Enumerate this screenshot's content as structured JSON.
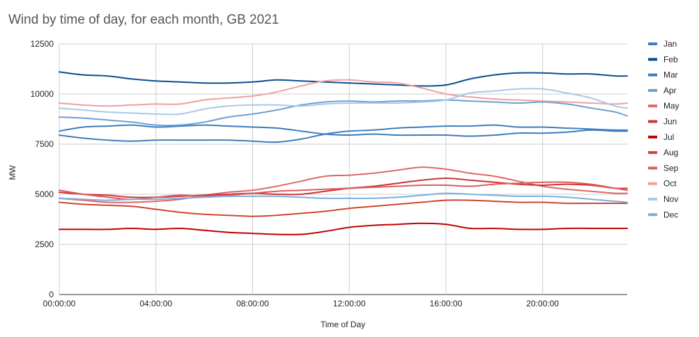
{
  "chart_data": {
    "type": "line",
    "title": "Wind by time of day, for each month, GB 2021",
    "xlabel": "Time of Day",
    "ylabel": "MW",
    "xlim_hours": [
      0,
      23.5
    ],
    "ylim": [
      0,
      12500
    ],
    "yticks": [
      0,
      2500,
      5000,
      7500,
      10000,
      12500
    ],
    "xticks": [
      {
        "hour": 0,
        "label": "00:00:00"
      },
      {
        "hour": 4,
        "label": "04:00:00"
      },
      {
        "hour": 8,
        "label": "08:00:00"
      },
      {
        "hour": 12,
        "label": "12:00:00"
      },
      {
        "hour": 16,
        "label": "16:00:00"
      },
      {
        "hour": 20,
        "label": "20:00:00"
      }
    ],
    "grid": true,
    "legend_position": "right",
    "x_hours": [
      0,
      1,
      2,
      3,
      4,
      5,
      6,
      7,
      8,
      9,
      10,
      11,
      12,
      13,
      14,
      15,
      16,
      17,
      18,
      19,
      20,
      21,
      22,
      23,
      23.5
    ],
    "series": [
      {
        "name": "Jan",
        "color": "#3d7dbf",
        "values": [
          7950,
          7800,
          7700,
          7650,
          7700,
          7700,
          7700,
          7700,
          7650,
          7600,
          7750,
          8000,
          8150,
          8200,
          8300,
          8350,
          8400,
          8400,
          8450,
          8350,
          8350,
          8300,
          8250,
          8200,
          8200
        ]
      },
      {
        "name": "Feb",
        "color": "#0b4d8f",
        "values": [
          11100,
          10950,
          10900,
          10750,
          10650,
          10600,
          10550,
          10550,
          10600,
          10700,
          10650,
          10600,
          10550,
          10500,
          10450,
          10400,
          10450,
          10750,
          10950,
          11050,
          11050,
          11000,
          11000,
          10900,
          10900
        ]
      },
      {
        "name": "Mar",
        "color": "#3b7bbd",
        "values": [
          8150,
          8350,
          8400,
          8450,
          8350,
          8400,
          8450,
          8400,
          8350,
          8300,
          8150,
          8000,
          7950,
          8000,
          7950,
          7950,
          7950,
          7900,
          7950,
          8050,
          8050,
          8100,
          8200,
          8150,
          8150
        ]
      },
      {
        "name": "Apr",
        "color": "#6a9fd4",
        "values": [
          8850,
          8800,
          8700,
          8600,
          8450,
          8450,
          8600,
          8850,
          9000,
          9200,
          9450,
          9600,
          9650,
          9600,
          9650,
          9650,
          9700,
          9650,
          9600,
          9550,
          9600,
          9500,
          9300,
          9100,
          8900
        ]
      },
      {
        "name": "May",
        "color": "#e06666",
        "values": [
          4800,
          4700,
          4600,
          4600,
          4650,
          4750,
          4950,
          5100,
          5200,
          5400,
          5650,
          5900,
          5950,
          6050,
          6200,
          6350,
          6250,
          6050,
          5900,
          5650,
          5400,
          5250,
          5150,
          5050,
          5050
        ]
      },
      {
        "name": "Jun",
        "color": "#cc3333",
        "values": [
          5100,
          5000,
          4950,
          4850,
          4850,
          4900,
          4950,
          5000,
          5050,
          5000,
          5000,
          5150,
          5300,
          5400,
          5550,
          5700,
          5800,
          5700,
          5600,
          5500,
          5450,
          5500,
          5450,
          5300,
          5300
        ]
      },
      {
        "name": "Jul",
        "color": "#c00000",
        "values": [
          3250,
          3250,
          3250,
          3300,
          3250,
          3300,
          3200,
          3100,
          3050,
          3000,
          3000,
          3150,
          3350,
          3450,
          3500,
          3550,
          3500,
          3300,
          3300,
          3250,
          3250,
          3300,
          3300,
          3300,
          3300
        ]
      },
      {
        "name": "Aug",
        "color": "#d0452f",
        "values": [
          4600,
          4500,
          4450,
          4400,
          4250,
          4100,
          4000,
          3950,
          3900,
          3950,
          4050,
          4150,
          4300,
          4400,
          4500,
          4600,
          4700,
          4700,
          4650,
          4600,
          4600,
          4550,
          4550,
          4550,
          4550
        ]
      },
      {
        "name": "Sep",
        "color": "#dd5c5c",
        "values": [
          5200,
          5000,
          4850,
          4750,
          4850,
          4950,
          4900,
          4950,
          5050,
          5150,
          5200,
          5250,
          5300,
          5350,
          5400,
          5450,
          5450,
          5400,
          5500,
          5550,
          5600,
          5600,
          5500,
          5300,
          5200
        ]
      },
      {
        "name": "Oct",
        "color": "#eda0a0",
        "values": [
          9550,
          9450,
          9400,
          9450,
          9500,
          9500,
          9700,
          9800,
          9900,
          10100,
          10400,
          10650,
          10700,
          10600,
          10550,
          10300,
          10000,
          9850,
          9750,
          9700,
          9650,
          9600,
          9550,
          9500,
          9550
        ]
      },
      {
        "name": "Nov",
        "color": "#a7c8e8",
        "values": [
          9300,
          9200,
          9100,
          9050,
          9000,
          9000,
          9250,
          9400,
          9450,
          9450,
          9400,
          9500,
          9550,
          9550,
          9550,
          9600,
          9700,
          10050,
          10150,
          10250,
          10250,
          10050,
          9800,
          9400,
          9300
        ]
      },
      {
        "name": "Dec",
        "color": "#7aaedf",
        "values": [
          4800,
          4750,
          4700,
          4750,
          4750,
          4800,
          4850,
          4900,
          4900,
          4900,
          4850,
          4800,
          4800,
          4800,
          4850,
          4950,
          5050,
          5000,
          4950,
          4900,
          4900,
          4850,
          4750,
          4650,
          4600
        ]
      }
    ]
  }
}
